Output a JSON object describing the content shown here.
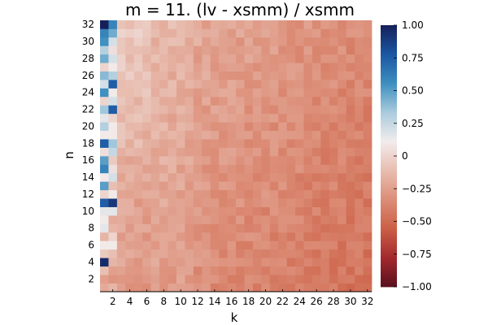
{
  "chart_data": {
    "type": "heatmap",
    "title": "m = 11. (lv - xsmm) / xsmm",
    "xlabel": "k",
    "ylabel": "n",
    "x_range": [
      1,
      32
    ],
    "y_range": [
      1,
      32
    ],
    "x_ticks": [
      "2",
      "4",
      "6",
      "8",
      "10",
      "12",
      "14",
      "16",
      "18",
      "20",
      "22",
      "24",
      "26",
      "28",
      "30",
      "32"
    ],
    "y_ticks": [
      "2",
      "4",
      "6",
      "8",
      "10",
      "12",
      "14",
      "16",
      "18",
      "20",
      "22",
      "24",
      "26",
      "28",
      "30",
      "32"
    ],
    "colorbar": {
      "min": -1.0,
      "max": 1.0,
      "ticks": [
        "1.00",
        "0.75",
        "0.50",
        "0.25",
        "0",
        "−0.25",
        "−0.50",
        "−0.75",
        "−1.00"
      ],
      "colors": [
        "#5a0f1e",
        "#a3292d",
        "#cc5f46",
        "#dc8d77",
        "#e8bdb0",
        "#f2ecec",
        "#a9cbdd",
        "#3d8fbf",
        "#1b56a2",
        "#15205a"
      ]
    },
    "column_1_values": [
      -0.2,
      -0.25,
      -0.1,
      0.95,
      -0.05,
      0.1,
      -0.15,
      0.15,
      0.1,
      0.15,
      0.75,
      0.0,
      0.5,
      0.1,
      0.6,
      0.5,
      0.05,
      0.75,
      0.1,
      0.3,
      0.15,
      0.35,
      0.0,
      0.55,
      0.2,
      0.4,
      0.0,
      0.45,
      0.3,
      0.55,
      0.6,
      1.0
    ],
    "column_2_values": [
      -0.15,
      -0.3,
      -0.25,
      -0.15,
      -0.1,
      0.1,
      0.0,
      -0.15,
      -0.2,
      0.15,
      0.9,
      0.1,
      -0.1,
      0.2,
      0.05,
      -0.05,
      0.25,
      0.35,
      0.1,
      0.1,
      0.0,
      0.75,
      0.2,
      0.1,
      0.75,
      0.3,
      0.1,
      0.2,
      0.05,
      0.2,
      0.45,
      0.6
    ],
    "note_other_cells": "remaining cells k>=3 are mostly between -0.05 and -0.45, lighter (near 0) for small k at large n"
  }
}
